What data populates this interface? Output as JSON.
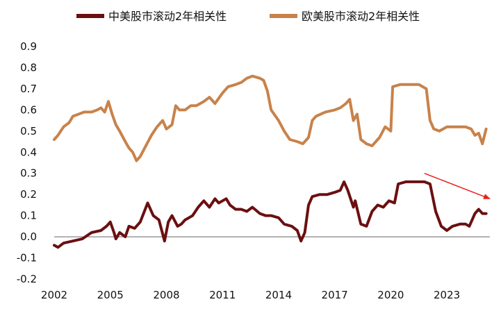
{
  "chart_data": {
    "type": "line",
    "title": "",
    "xlabel": "",
    "ylabel": "",
    "xlim": [
      2002,
      2025.3
    ],
    "ylim": [
      -0.2,
      0.9
    ],
    "x_ticks": [
      "2002",
      "2005",
      "2008",
      "2011",
      "2014",
      "2017",
      "2020",
      "2023"
    ],
    "y_ticks": [
      "0.9",
      "0.8",
      "0.7",
      "0.6",
      "0.5",
      "0.4",
      "0.3",
      "0.2",
      "0.1",
      "0.0",
      "-0.1",
      "-0.2"
    ],
    "legend_position": "top",
    "grid": false,
    "series": [
      {
        "name": "中美股市滚动2年相关性",
        "color": "#6b0f10",
        "x": [
          2002.0,
          2002.2,
          2002.5,
          2003.0,
          2003.5,
          2004.0,
          2004.5,
          2004.8,
          2005.0,
          2005.2,
          2005.3,
          2005.5,
          2005.8,
          2006.0,
          2006.3,
          2006.6,
          2007.0,
          2007.3,
          2007.6,
          2007.9,
          2008.1,
          2008.3,
          2008.6,
          2008.8,
          2009.0,
          2009.2,
          2009.4,
          2009.7,
          2010.0,
          2010.3,
          2010.6,
          2010.8,
          2011.0,
          2011.2,
          2011.4,
          2011.7,
          2012.0,
          2012.3,
          2012.6,
          2013.0,
          2013.3,
          2013.6,
          2014.0,
          2014.3,
          2014.7,
          2015.0,
          2015.2,
          2015.4,
          2015.6,
          2015.8,
          2016.2,
          2016.6,
          2017.0,
          2017.3,
          2017.5,
          2017.7,
          2018.0,
          2018.1,
          2018.4,
          2018.7,
          2019.0,
          2019.3,
          2019.6,
          2019.9,
          2020.2,
          2020.4,
          2020.8,
          2021.3,
          2021.8,
          2022.1,
          2022.4,
          2022.7,
          2023.0,
          2023.3,
          2023.7,
          2024.0,
          2024.2,
          2024.5,
          2024.7,
          2024.9,
          2025.1
        ],
        "values": [
          -0.04,
          -0.05,
          -0.03,
          -0.02,
          -0.01,
          0.02,
          0.03,
          0.05,
          0.07,
          0.02,
          -0.01,
          0.02,
          0.0,
          0.05,
          0.04,
          0.07,
          0.16,
          0.1,
          0.08,
          -0.02,
          0.07,
          0.1,
          0.05,
          0.06,
          0.08,
          0.09,
          0.1,
          0.14,
          0.17,
          0.14,
          0.18,
          0.16,
          0.17,
          0.18,
          0.15,
          0.13,
          0.13,
          0.12,
          0.14,
          0.11,
          0.1,
          0.1,
          0.09,
          0.06,
          0.05,
          0.03,
          -0.02,
          0.02,
          0.15,
          0.19,
          0.2,
          0.2,
          0.21,
          0.22,
          0.26,
          0.22,
          0.14,
          0.17,
          0.06,
          0.05,
          0.12,
          0.15,
          0.14,
          0.17,
          0.16,
          0.25,
          0.26,
          0.26,
          0.26,
          0.25,
          0.12,
          0.05,
          0.03,
          0.05,
          0.06,
          0.06,
          0.05,
          0.11,
          0.13,
          0.11,
          0.11
        ]
      },
      {
        "name": "欧美股市滚动2年相关性",
        "color": "#c8824a",
        "x": [
          2002.0,
          2002.2,
          2002.5,
          2002.8,
          2003.0,
          2003.3,
          2003.6,
          2004.0,
          2004.3,
          2004.5,
          2004.7,
          2004.9,
          2005.1,
          2005.3,
          2005.5,
          2005.8,
          2006.0,
          2006.2,
          2006.4,
          2006.6,
          2006.9,
          2007.2,
          2007.5,
          2007.8,
          2008.0,
          2008.3,
          2008.5,
          2008.7,
          2009.0,
          2009.3,
          2009.6,
          2010.0,
          2010.3,
          2010.6,
          2011.0,
          2011.3,
          2011.7,
          2012.0,
          2012.3,
          2012.6,
          2013.0,
          2013.2,
          2013.4,
          2013.6,
          2014.0,
          2014.3,
          2014.6,
          2015.0,
          2015.3,
          2015.6,
          2015.8,
          2016.0,
          2016.5,
          2017.0,
          2017.3,
          2017.6,
          2017.8,
          2018.0,
          2018.2,
          2018.4,
          2018.7,
          2019.0,
          2019.4,
          2019.7,
          2020.0,
          2020.1,
          2020.5,
          2021.0,
          2021.5,
          2021.9,
          2022.1,
          2022.3,
          2022.6,
          2023.0,
          2023.5,
          2024.0,
          2024.3,
          2024.5,
          2024.7,
          2024.9,
          2025.1
        ],
        "values": [
          0.46,
          0.48,
          0.52,
          0.54,
          0.57,
          0.58,
          0.59,
          0.59,
          0.6,
          0.61,
          0.59,
          0.64,
          0.58,
          0.53,
          0.5,
          0.45,
          0.42,
          0.4,
          0.36,
          0.38,
          0.43,
          0.48,
          0.52,
          0.55,
          0.51,
          0.53,
          0.62,
          0.6,
          0.6,
          0.62,
          0.62,
          0.64,
          0.66,
          0.63,
          0.68,
          0.71,
          0.72,
          0.73,
          0.75,
          0.76,
          0.75,
          0.74,
          0.69,
          0.6,
          0.55,
          0.5,
          0.46,
          0.45,
          0.44,
          0.47,
          0.55,
          0.57,
          0.59,
          0.6,
          0.61,
          0.63,
          0.65,
          0.55,
          0.58,
          0.46,
          0.44,
          0.43,
          0.47,
          0.52,
          0.5,
          0.71,
          0.72,
          0.72,
          0.72,
          0.7,
          0.55,
          0.51,
          0.5,
          0.52,
          0.52,
          0.52,
          0.51,
          0.48,
          0.49,
          0.44,
          0.51
        ]
      }
    ],
    "annotation": {
      "type": "arrow",
      "color": "#e8201c",
      "from": [
        2021.8,
        0.3
      ],
      "to": [
        2025.3,
        0.18
      ]
    }
  }
}
